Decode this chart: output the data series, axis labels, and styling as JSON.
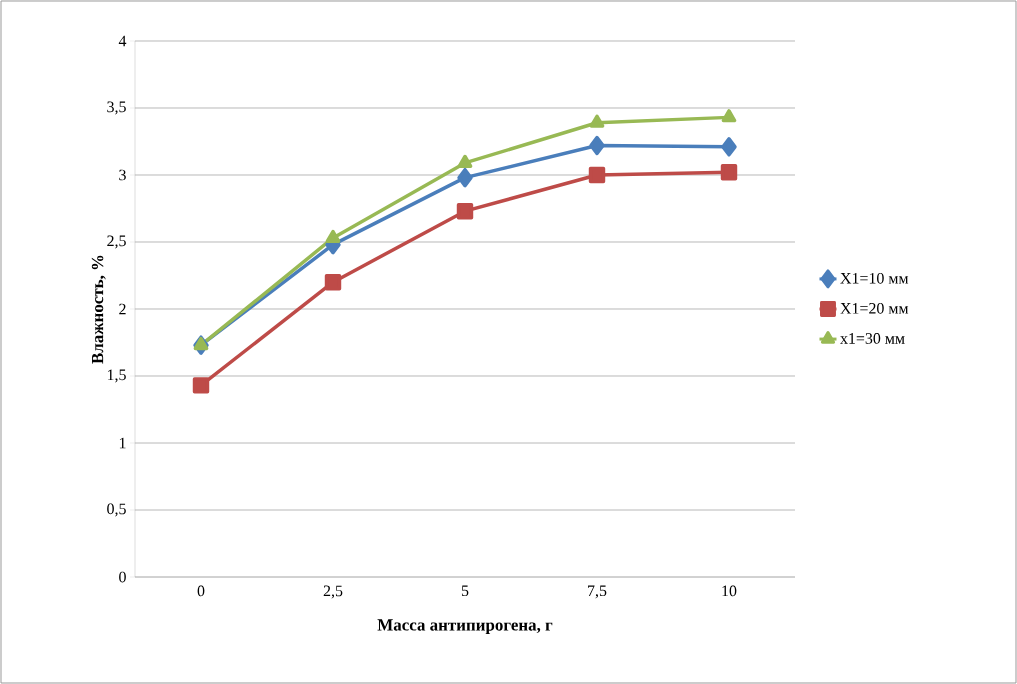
{
  "chart_data": {
    "type": "line",
    "xlabel": "Масса антипирогена, г",
    "ylabel": "Влажность, %",
    "categories": [
      "0",
      "2,5",
      "5",
      "7,5",
      "10"
    ],
    "series": [
      {
        "name": "X1=10 мм",
        "color": "#4a7ebb",
        "marker": "diamond",
        "values": [
          1.73,
          2.48,
          2.98,
          3.22,
          3.21
        ]
      },
      {
        "name": "X1=20 мм",
        "color": "#be4b48",
        "marker": "square",
        "values": [
          1.43,
          2.2,
          2.73,
          3.0,
          3.02
        ]
      },
      {
        "name": "x1=30 мм",
        "color": "#98b954",
        "marker": "triangle",
        "values": [
          1.73,
          2.53,
          3.09,
          3.39,
          3.43
        ]
      }
    ],
    "ylim": [
      0,
      4
    ],
    "yticks": [
      0,
      {
        "value": 0.5,
        "label": "0,5"
      },
      1,
      {
        "value": 1.5,
        "label": "1,5"
      },
      2,
      {
        "value": 2.5,
        "label": "2,5"
      },
      3,
      {
        "value": 3.5,
        "label": "3,5"
      },
      4
    ],
    "grid": "y",
    "legend": "right",
    "line_style": "solid"
  }
}
